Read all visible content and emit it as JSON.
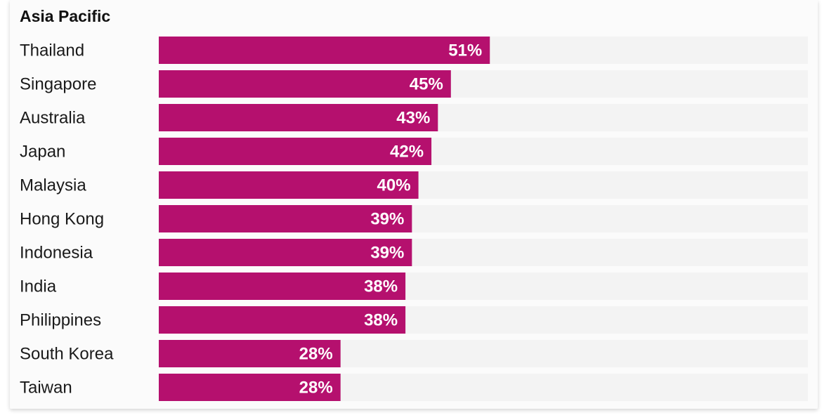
{
  "chart_data": {
    "type": "bar",
    "orientation": "horizontal",
    "title": "Asia Pacific",
    "categories": [
      "Thailand",
      "Singapore",
      "Australia",
      "Japan",
      "Malaysia",
      "Hong Kong",
      "Indonesia",
      "India",
      "Philippines",
      "South Korea",
      "Taiwan"
    ],
    "values": [
      51,
      45,
      43,
      42,
      40,
      39,
      39,
      38,
      38,
      28,
      28
    ],
    "value_labels": [
      "51%",
      "45%",
      "43%",
      "42%",
      "40%",
      "39%",
      "39%",
      "38%",
      "38%",
      "28%",
      "28%"
    ],
    "xlim": [
      0,
      100
    ],
    "xlabel": "",
    "ylabel": "",
    "grid": false,
    "legend": "none"
  },
  "colors": {
    "bar": "#b5106e",
    "track": "#f3f3f3",
    "label": "#1a1a1a",
    "value_text": "#ffffff"
  }
}
